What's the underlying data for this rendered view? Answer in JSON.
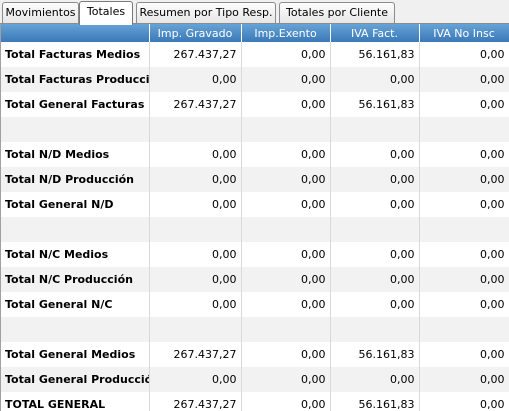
{
  "tabs": [
    {
      "label": "Movimientos",
      "active": false
    },
    {
      "label": "Totales",
      "active": true
    },
    {
      "label": "Resumen por Tipo Resp.",
      "active": false
    },
    {
      "label": "Totales por Cliente",
      "active": false
    }
  ],
  "table": {
    "columns": [
      "",
      "Imp. Gravado",
      "Imp.Exento",
      "IVA Fact.",
      "IVA No Insc"
    ],
    "rows": [
      {
        "label": "Total Facturas Medios",
        "values": [
          "267.437,27",
          "0,00",
          "56.161,83",
          "0,00"
        ]
      },
      {
        "label": "Total Facturas Producción",
        "values": [
          "0,00",
          "0,00",
          "0,00",
          "0,00"
        ]
      },
      {
        "label": "Total General Facturas",
        "values": [
          "267.437,27",
          "0,00",
          "56.161,83",
          "0,00"
        ]
      },
      {
        "label": "",
        "values": [
          "",
          "",
          "",
          ""
        ]
      },
      {
        "label": "Total N/D Medios",
        "values": [
          "0,00",
          "0,00",
          "0,00",
          "0,00"
        ]
      },
      {
        "label": "Total N/D Producción",
        "values": [
          "0,00",
          "0,00",
          "0,00",
          "0,00"
        ]
      },
      {
        "label": "Total General N/D",
        "values": [
          "0,00",
          "0,00",
          "0,00",
          "0,00"
        ]
      },
      {
        "label": "",
        "values": [
          "",
          "",
          "",
          ""
        ]
      },
      {
        "label": "Total N/C Medios",
        "values": [
          "0,00",
          "0,00",
          "0,00",
          "0,00"
        ]
      },
      {
        "label": "Total N/C Producción",
        "values": [
          "0,00",
          "0,00",
          "0,00",
          "0,00"
        ]
      },
      {
        "label": "Total General N/C",
        "values": [
          "0,00",
          "0,00",
          "0,00",
          "0,00"
        ]
      },
      {
        "label": "",
        "values": [
          "",
          "",
          "",
          ""
        ]
      },
      {
        "label": "Total General Medios",
        "values": [
          "267.437,27",
          "0,00",
          "56.161,83",
          "0,00"
        ]
      },
      {
        "label": "Total General Producción",
        "values": [
          "0,00",
          "0,00",
          "0,00",
          "0,00"
        ]
      },
      {
        "label": "TOTAL GENERAL",
        "values": [
          "267.437,27",
          "0,00",
          "56.161,83",
          "0,00"
        ],
        "grand_total": true
      }
    ]
  },
  "colors": {
    "header_top": "#66a3d6",
    "header_bottom": "#3a78b8",
    "alt_row": "#f2f2f2"
  }
}
